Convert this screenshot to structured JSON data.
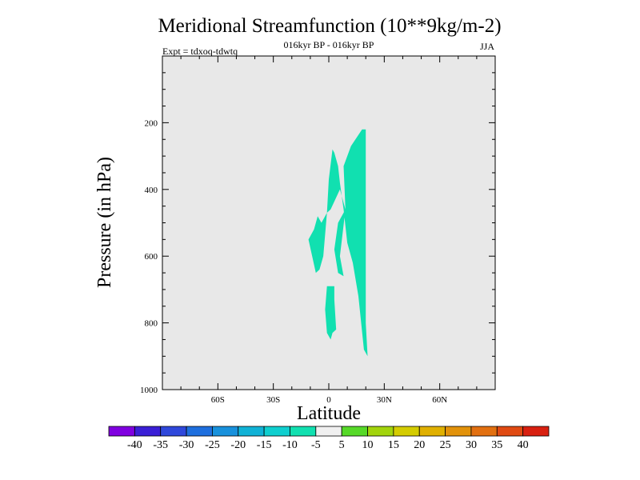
{
  "chart_data": {
    "type": "contour",
    "title": "Meridional Streamfunction (10**9kg/m-2)",
    "subtitle_center": "016kyr BP - 016kyr BP",
    "subtitle_left": "Expt = tdxoq-tdwtq",
    "subtitle_right": "JJA",
    "xlabel": "Latitude",
    "ylabel": "Pressure (in hPa)",
    "xlim": [
      -90,
      90
    ],
    "ylim": [
      1000,
      0
    ],
    "x_ticks": [
      {
        "value": -60,
        "label": "60S"
      },
      {
        "value": -30,
        "label": "30S"
      },
      {
        "value": 0,
        "label": "0"
      },
      {
        "value": 30,
        "label": "30N"
      },
      {
        "value": 60,
        "label": "60N"
      }
    ],
    "y_ticks": [
      {
        "value": 200,
        "label": "200"
      },
      {
        "value": 400,
        "label": "400"
      },
      {
        "value": 600,
        "label": "600"
      },
      {
        "value": 800,
        "label": "800"
      },
      {
        "value": 1000,
        "label": "1000"
      }
    ],
    "background_color": "#e8e8e8",
    "colorbar": {
      "labels": [
        "-40",
        "-35",
        "-30",
        "-25",
        "-20",
        "-15",
        "-10",
        "-5",
        "5",
        "10",
        "15",
        "20",
        "25",
        "30",
        "35",
        "40"
      ],
      "colors": [
        "#8000e0",
        "#3a1fd6",
        "#2f48db",
        "#1e6fde",
        "#1891dc",
        "#10b2d6",
        "#0fcfcf",
        "#11e0b0",
        "#f0f0f0",
        "#56d928",
        "#a2d40c",
        "#d4cc00",
        "#e0b000",
        "#e2920a",
        "#e27010",
        "#e04a12",
        "#d82010"
      ]
    },
    "regions": [
      {
        "level_range": "-10 to -5",
        "color": "#11e0b0",
        "points": [
          [
            18,
            220
          ],
          [
            20,
            220
          ],
          [
            20,
            620
          ],
          [
            20,
            800
          ],
          [
            21,
            900
          ],
          [
            19,
            880
          ],
          [
            16,
            720
          ],
          [
            13,
            620
          ],
          [
            10,
            560
          ],
          [
            8,
            460
          ],
          [
            6,
            380
          ],
          [
            5,
            330
          ],
          [
            3,
            290
          ],
          [
            2,
            280
          ],
          [
            0,
            370
          ],
          [
            -1,
            470
          ],
          [
            -3,
            600
          ],
          [
            -5,
            640
          ],
          [
            -7,
            650
          ],
          [
            -9,
            600
          ],
          [
            -11,
            550
          ],
          [
            -8,
            520
          ],
          [
            -6,
            480
          ],
          [
            -4,
            500
          ],
          [
            -1,
            470
          ],
          [
            1,
            460
          ],
          [
            6,
            400
          ],
          [
            9,
            460
          ],
          [
            6,
            600
          ],
          [
            8,
            660
          ],
          [
            5,
            650
          ],
          [
            3,
            580
          ],
          [
            5,
            500
          ],
          [
            9,
            460
          ],
          [
            8,
            330
          ],
          [
            12,
            270
          ]
        ]
      },
      {
        "level_range": "-10 to -5",
        "color": "#11e0b0",
        "points": [
          [
            -1,
            690
          ],
          [
            3,
            690
          ],
          [
            3,
            730
          ],
          [
            4,
            820
          ],
          [
            2,
            830
          ],
          [
            1,
            850
          ],
          [
            -1,
            830
          ],
          [
            -2,
            760
          ]
        ]
      }
    ]
  }
}
